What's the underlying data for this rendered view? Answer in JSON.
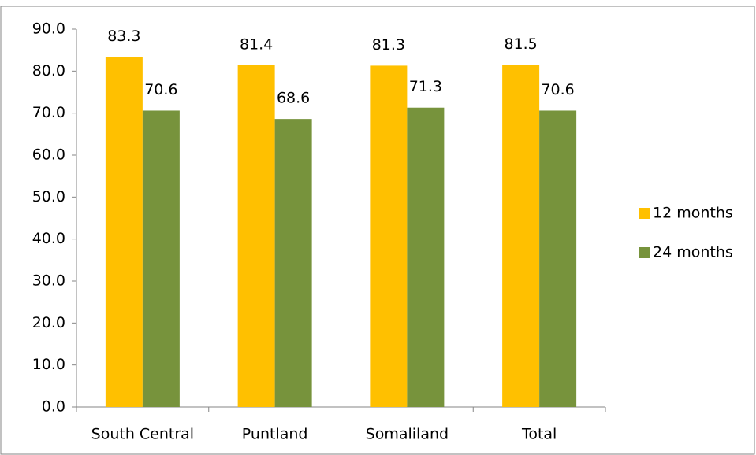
{
  "chart_data": {
    "type": "bar",
    "categories": [
      "South Central",
      "Puntland",
      "Somaliland",
      "Total"
    ],
    "series": [
      {
        "name": "12 months",
        "color": "#ffc000",
        "values": [
          83.3,
          81.4,
          81.3,
          81.5
        ]
      },
      {
        "name": "24 months",
        "color": "#77933c",
        "values": [
          70.6,
          68.6,
          71.3,
          70.6
        ]
      }
    ],
    "ylim": [
      0,
      90
    ],
    "yticks": [
      {
        "value": 0,
        "label": "0.0"
      },
      {
        "value": 10,
        "label": "10.0"
      },
      {
        "value": 20,
        "label": "20.0"
      },
      {
        "value": 30,
        "label": "30.0"
      },
      {
        "value": 40,
        "label": "40.0"
      },
      {
        "value": 50,
        "label": "50.0"
      },
      {
        "value": 60,
        "label": "60.0"
      },
      {
        "value": 70,
        "label": "70.0"
      },
      {
        "value": 80,
        "label": "80.0"
      },
      {
        "value": 90,
        "label": "90.0"
      }
    ],
    "legend": "right"
  }
}
